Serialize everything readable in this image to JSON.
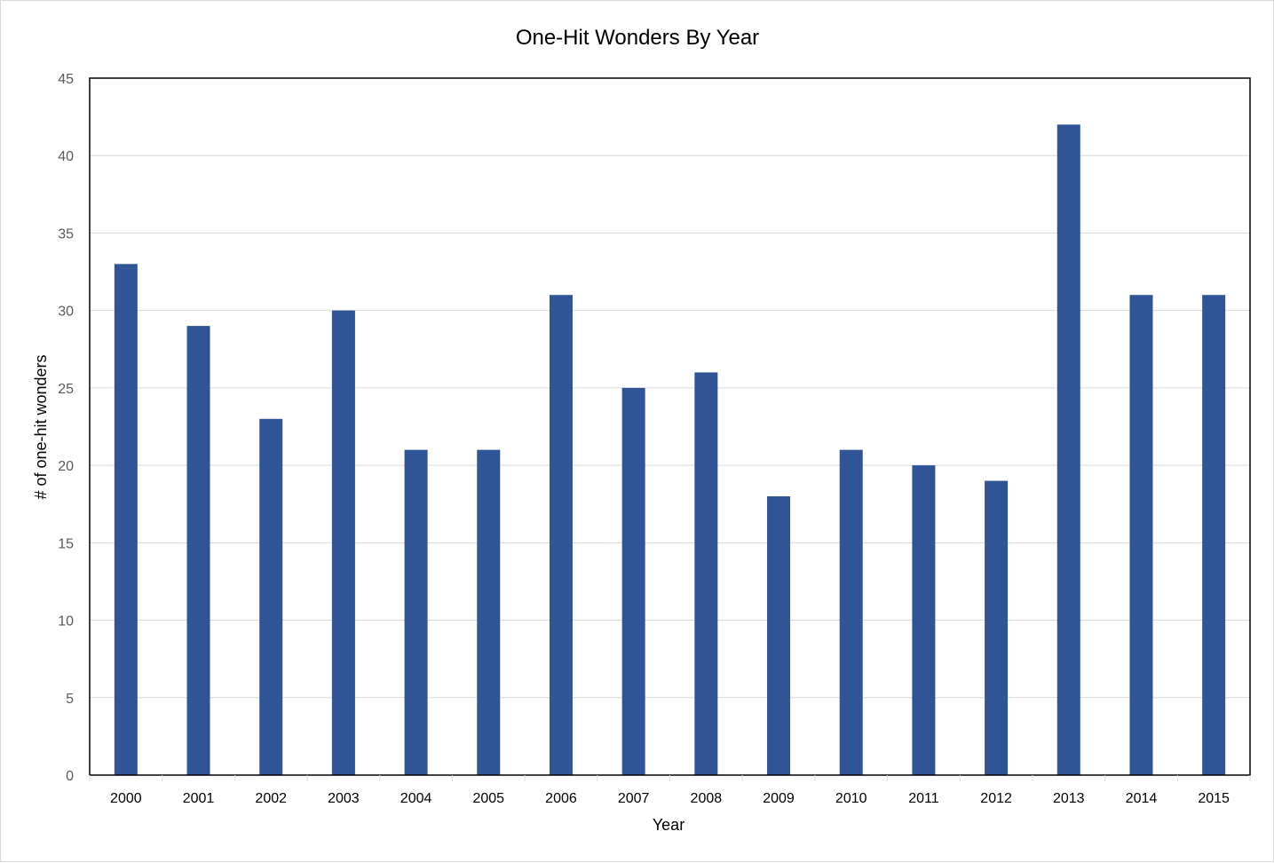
{
  "chart_data": {
    "type": "bar",
    "title": "One-Hit Wonders By Year",
    "xlabel": "Year",
    "ylabel": "# of one-hit wonders",
    "categories": [
      "2000",
      "2001",
      "2002",
      "2003",
      "2004",
      "2005",
      "2006",
      "2007",
      "2008",
      "2009",
      "2010",
      "2011",
      "2012",
      "2013",
      "2014",
      "2015"
    ],
    "values": [
      33,
      29,
      23,
      30,
      21,
      21,
      31,
      25,
      26,
      18,
      21,
      20,
      19,
      42,
      31,
      31
    ],
    "ylim": [
      0,
      45
    ],
    "yticks": [
      0,
      5,
      10,
      15,
      20,
      25,
      30,
      35,
      40,
      45
    ],
    "grid": true,
    "legend": "none",
    "colors": {
      "bar": "#2F5597",
      "grid": "#d9d9d9",
      "axis": "#000000",
      "tick_text": "#595959"
    }
  }
}
